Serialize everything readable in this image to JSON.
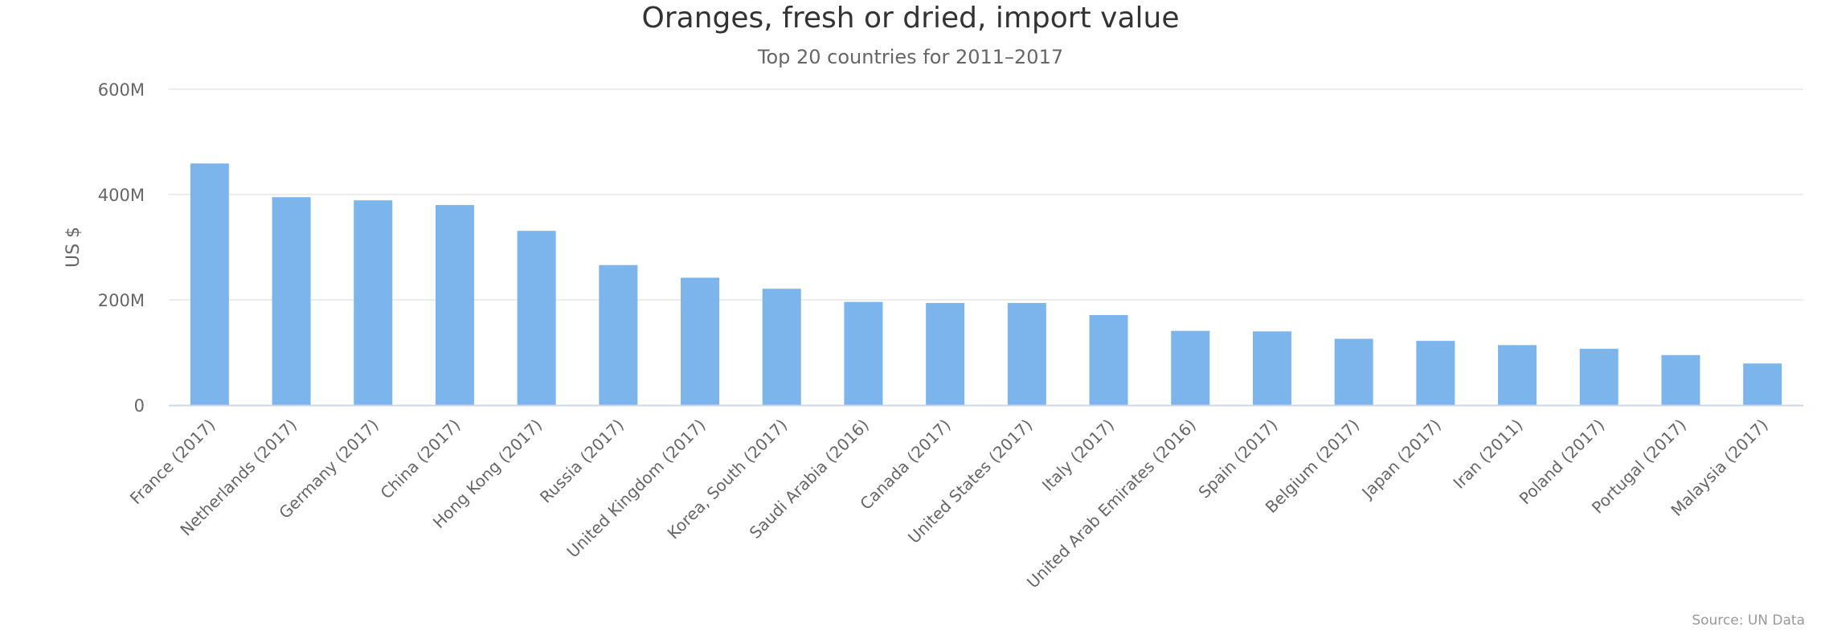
{
  "chart_data": {
    "type": "bar",
    "title": "Oranges, fresh or dried, import value",
    "subtitle": "Top 20 countries for 2011–2017",
    "ylabel": "US $",
    "xlabel": "",
    "ylim": [
      0,
      600000000
    ],
    "yticks": [
      {
        "value": 0,
        "label": "0"
      },
      {
        "value": 200000000,
        "label": "200M"
      },
      {
        "value": 400000000,
        "label": "400M"
      },
      {
        "value": 600000000,
        "label": "600M"
      }
    ],
    "grid": true,
    "legend": "none",
    "bar_color": "#7cb5ec",
    "categories": [
      "France (2017)",
      "Netherlands (2017)",
      "Germany (2017)",
      "China (2017)",
      "Hong Kong (2017)",
      "Russia (2017)",
      "United Kingdom (2017)",
      "Korea, South (2017)",
      "Saudi Arabia (2016)",
      "Canada (2017)",
      "United States (2017)",
      "Italy (2017)",
      "United Arab Emirates (2016)",
      "Spain (2017)",
      "Belgium (2017)",
      "Japan (2017)",
      "Iran (2011)",
      "Poland (2017)",
      "Portugal (2017)",
      "Malaysia (2017)"
    ],
    "values": [
      459000000,
      395000000,
      389000000,
      380000000,
      331000000,
      266000000,
      242000000,
      221000000,
      196000000,
      194000000,
      194000000,
      171000000,
      141000000,
      140000000,
      126000000,
      122000000,
      114000000,
      107000000,
      95000000,
      79000000
    ]
  },
  "credits": "Source: UN Data"
}
